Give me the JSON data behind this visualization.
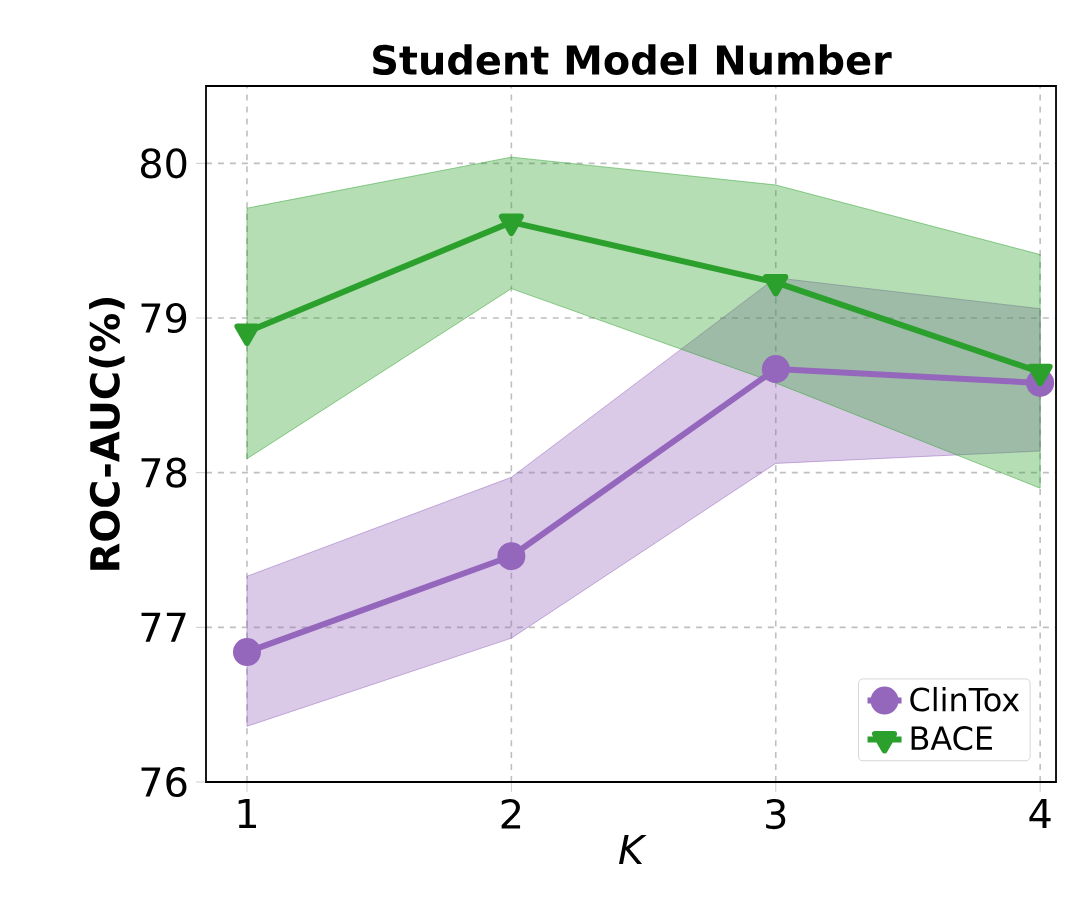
{
  "chart_data": {
    "type": "line",
    "title": "Student Model Number",
    "xlabel": "K",
    "ylabel": "ROC-AUC(%)",
    "x": [
      1,
      2,
      3,
      4
    ],
    "xlim": [
      0.845,
      4.06
    ],
    "xticks": [
      1,
      2,
      3,
      4
    ],
    "ylim": [
      76,
      80.5
    ],
    "yticks": [
      76,
      77,
      78,
      79,
      80
    ],
    "grid": true,
    "legend": "bottom right",
    "series": [
      {
        "name": "ClinTox",
        "color": "#9467bd",
        "marker": "circle",
        "values": [
          76.84,
          77.46,
          78.67,
          78.58
        ],
        "lower": [
          76.36,
          76.93,
          78.06,
          78.14
        ],
        "upper": [
          77.33,
          77.97,
          79.26,
          79.06
        ]
      },
      {
        "name": "BACE",
        "color": "#2ca02c",
        "marker": "triangle",
        "values": [
          78.91,
          79.62,
          79.23,
          78.65
        ],
        "lower": [
          78.09,
          79.19,
          78.58,
          77.9
        ],
        "upper": [
          79.71,
          80.04,
          79.86,
          79.41
        ]
      }
    ]
  }
}
